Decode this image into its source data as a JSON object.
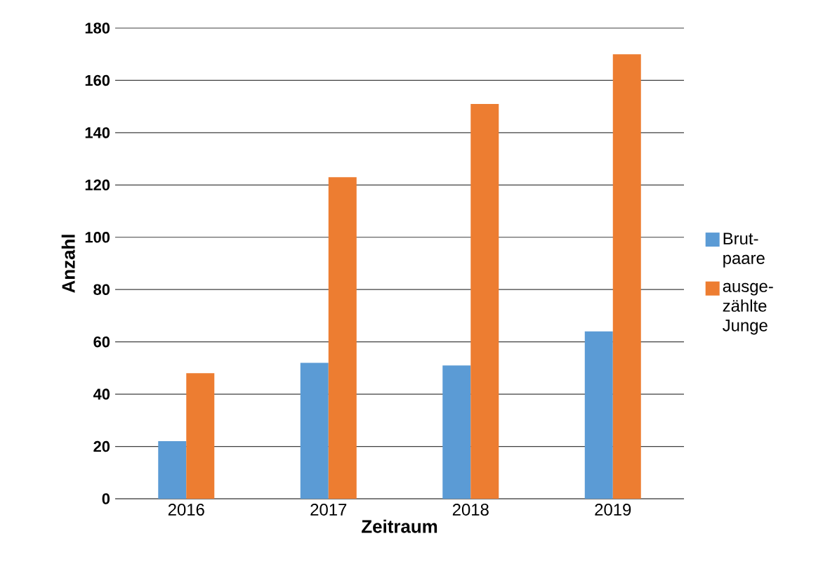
{
  "chart_data": {
    "type": "bar",
    "xlabel": "Zeitraum",
    "ylabel": "Anzahl",
    "categories": [
      "2016",
      "2017",
      "2018",
      "2019"
    ],
    "series": [
      {
        "name": "Brut-paare",
        "color": "#5b9bd5",
        "values": [
          22,
          52,
          51,
          64
        ]
      },
      {
        "name": "ausge-zählte Junge",
        "color": "#ed7d31",
        "values": [
          48,
          123,
          151,
          170
        ]
      }
    ],
    "ylim": [
      0,
      180
    ],
    "yticks": [
      0,
      20,
      40,
      60,
      80,
      100,
      120,
      140,
      160,
      180
    ],
    "grid": "y",
    "legend": "right"
  }
}
